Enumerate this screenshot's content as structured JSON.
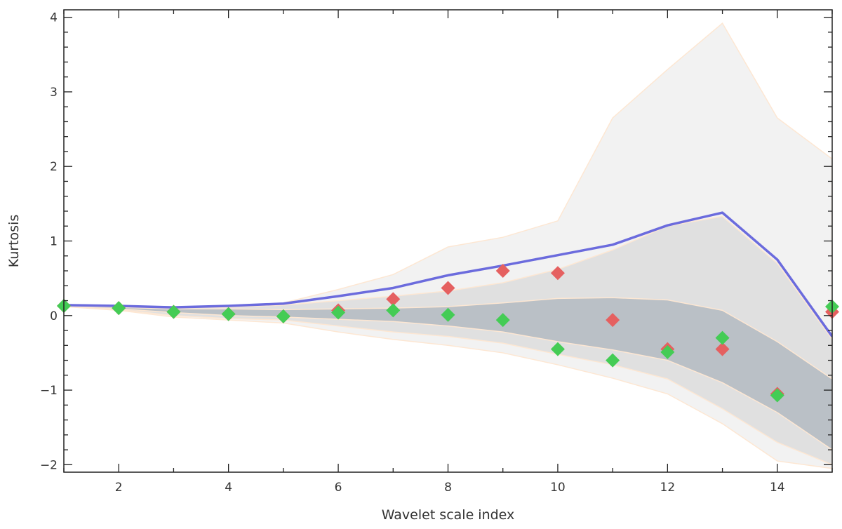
{
  "chart_data": {
    "type": "line",
    "title": "",
    "xlabel": "Wavelet scale index",
    "ylabel": "Kurtosis",
    "xlim": [
      1,
      15
    ],
    "ylim": [
      -2.1,
      4.1
    ],
    "x": [
      1,
      2,
      3,
      4,
      5,
      6,
      7,
      8,
      9,
      10,
      11,
      12,
      13,
      14,
      15
    ],
    "x_ticks": [
      "2",
      "4",
      "6",
      "8",
      "10",
      "12",
      "14"
    ],
    "x_tick_values": [
      2,
      4,
      6,
      8,
      10,
      12,
      14
    ],
    "y_ticks": [
      "−2",
      "−1",
      "0",
      "1",
      "2",
      "3",
      "4"
    ],
    "y_tick_values": [
      -2,
      -1,
      0,
      1,
      2,
      3,
      4
    ],
    "bands": [
      {
        "name": "outer envelope",
        "color": "#f2f2f2",
        "edge": "#fde7d3",
        "upper": [
          0.15,
          0.13,
          0.12,
          0.13,
          0.17,
          0.35,
          0.55,
          0.92,
          1.05,
          1.27,
          2.65,
          3.3,
          3.92,
          2.65,
          2.1
        ],
        "lower": [
          0.12,
          0.07,
          -0.02,
          -0.06,
          -0.1,
          -0.22,
          -0.32,
          -0.4,
          -0.5,
          -0.66,
          -0.84,
          -1.05,
          -1.45,
          -1.95,
          -2.05
        ]
      },
      {
        "name": "middle envelope",
        "color": "#e0e0e0",
        "edge": "#fde7d3",
        "upper": [
          0.14,
          0.12,
          0.11,
          0.11,
          0.14,
          0.2,
          0.26,
          0.33,
          0.44,
          0.62,
          0.88,
          1.2,
          1.33,
          0.7,
          -0.32
        ],
        "lower": [
          0.12,
          0.08,
          0.0,
          -0.04,
          -0.06,
          -0.14,
          -0.22,
          -0.28,
          -0.37,
          -0.52,
          -0.66,
          -0.85,
          -1.25,
          -1.7,
          -2.0
        ]
      },
      {
        "name": "inner envelope",
        "color": "#bac0c6",
        "edge": "#fde7d3",
        "upper": [
          0.13,
          0.11,
          0.09,
          0.09,
          0.08,
          0.09,
          0.1,
          0.12,
          0.17,
          0.23,
          0.24,
          0.21,
          0.07,
          -0.35,
          -0.85
        ],
        "lower": [
          0.12,
          0.09,
          0.04,
          0.0,
          -0.02,
          -0.05,
          -0.08,
          -0.14,
          -0.22,
          -0.35,
          -0.46,
          -0.6,
          -0.9,
          -1.3,
          -1.8
        ]
      }
    ],
    "series": [
      {
        "name": "model curve",
        "kind": "line",
        "color": "#6b6bdd",
        "values": [
          0.14,
          0.13,
          0.11,
          0.13,
          0.16,
          0.26,
          0.37,
          0.54,
          0.67,
          0.81,
          0.95,
          1.21,
          1.38,
          0.75,
          -0.28
        ]
      },
      {
        "name": "red observed",
        "kind": "points",
        "color": "#e56060",
        "values": [
          0.13,
          0.1,
          0.05,
          0.02,
          -0.01,
          0.07,
          0.22,
          0.37,
          0.6,
          0.57,
          -0.06,
          -0.45,
          -0.45,
          -1.05,
          0.05
        ]
      },
      {
        "name": "green observed",
        "kind": "points",
        "color": "#44cc55",
        "values": [
          0.13,
          0.1,
          0.05,
          0.02,
          -0.01,
          0.04,
          0.07,
          0.01,
          -0.06,
          -0.45,
          -0.6,
          -0.49,
          -0.3,
          -1.07,
          0.12
        ]
      }
    ]
  }
}
